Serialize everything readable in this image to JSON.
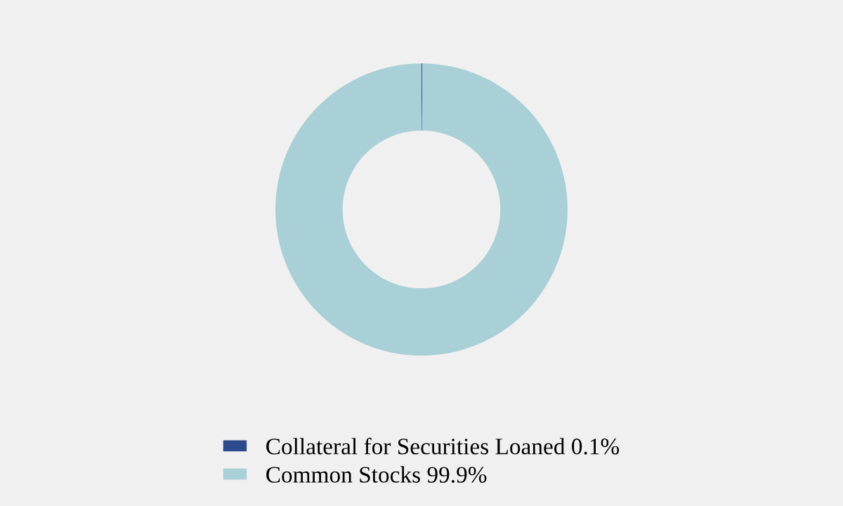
{
  "chart_data": {
    "type": "donut",
    "categories": [
      "Collateral for Securities Loaned 0.1%",
      "Common Stocks 99.9%"
    ],
    "values": [
      0.1,
      99.9
    ],
    "colors": [
      "#2e4a8f",
      "#a8d0d6"
    ],
    "legend": "bottom"
  }
}
